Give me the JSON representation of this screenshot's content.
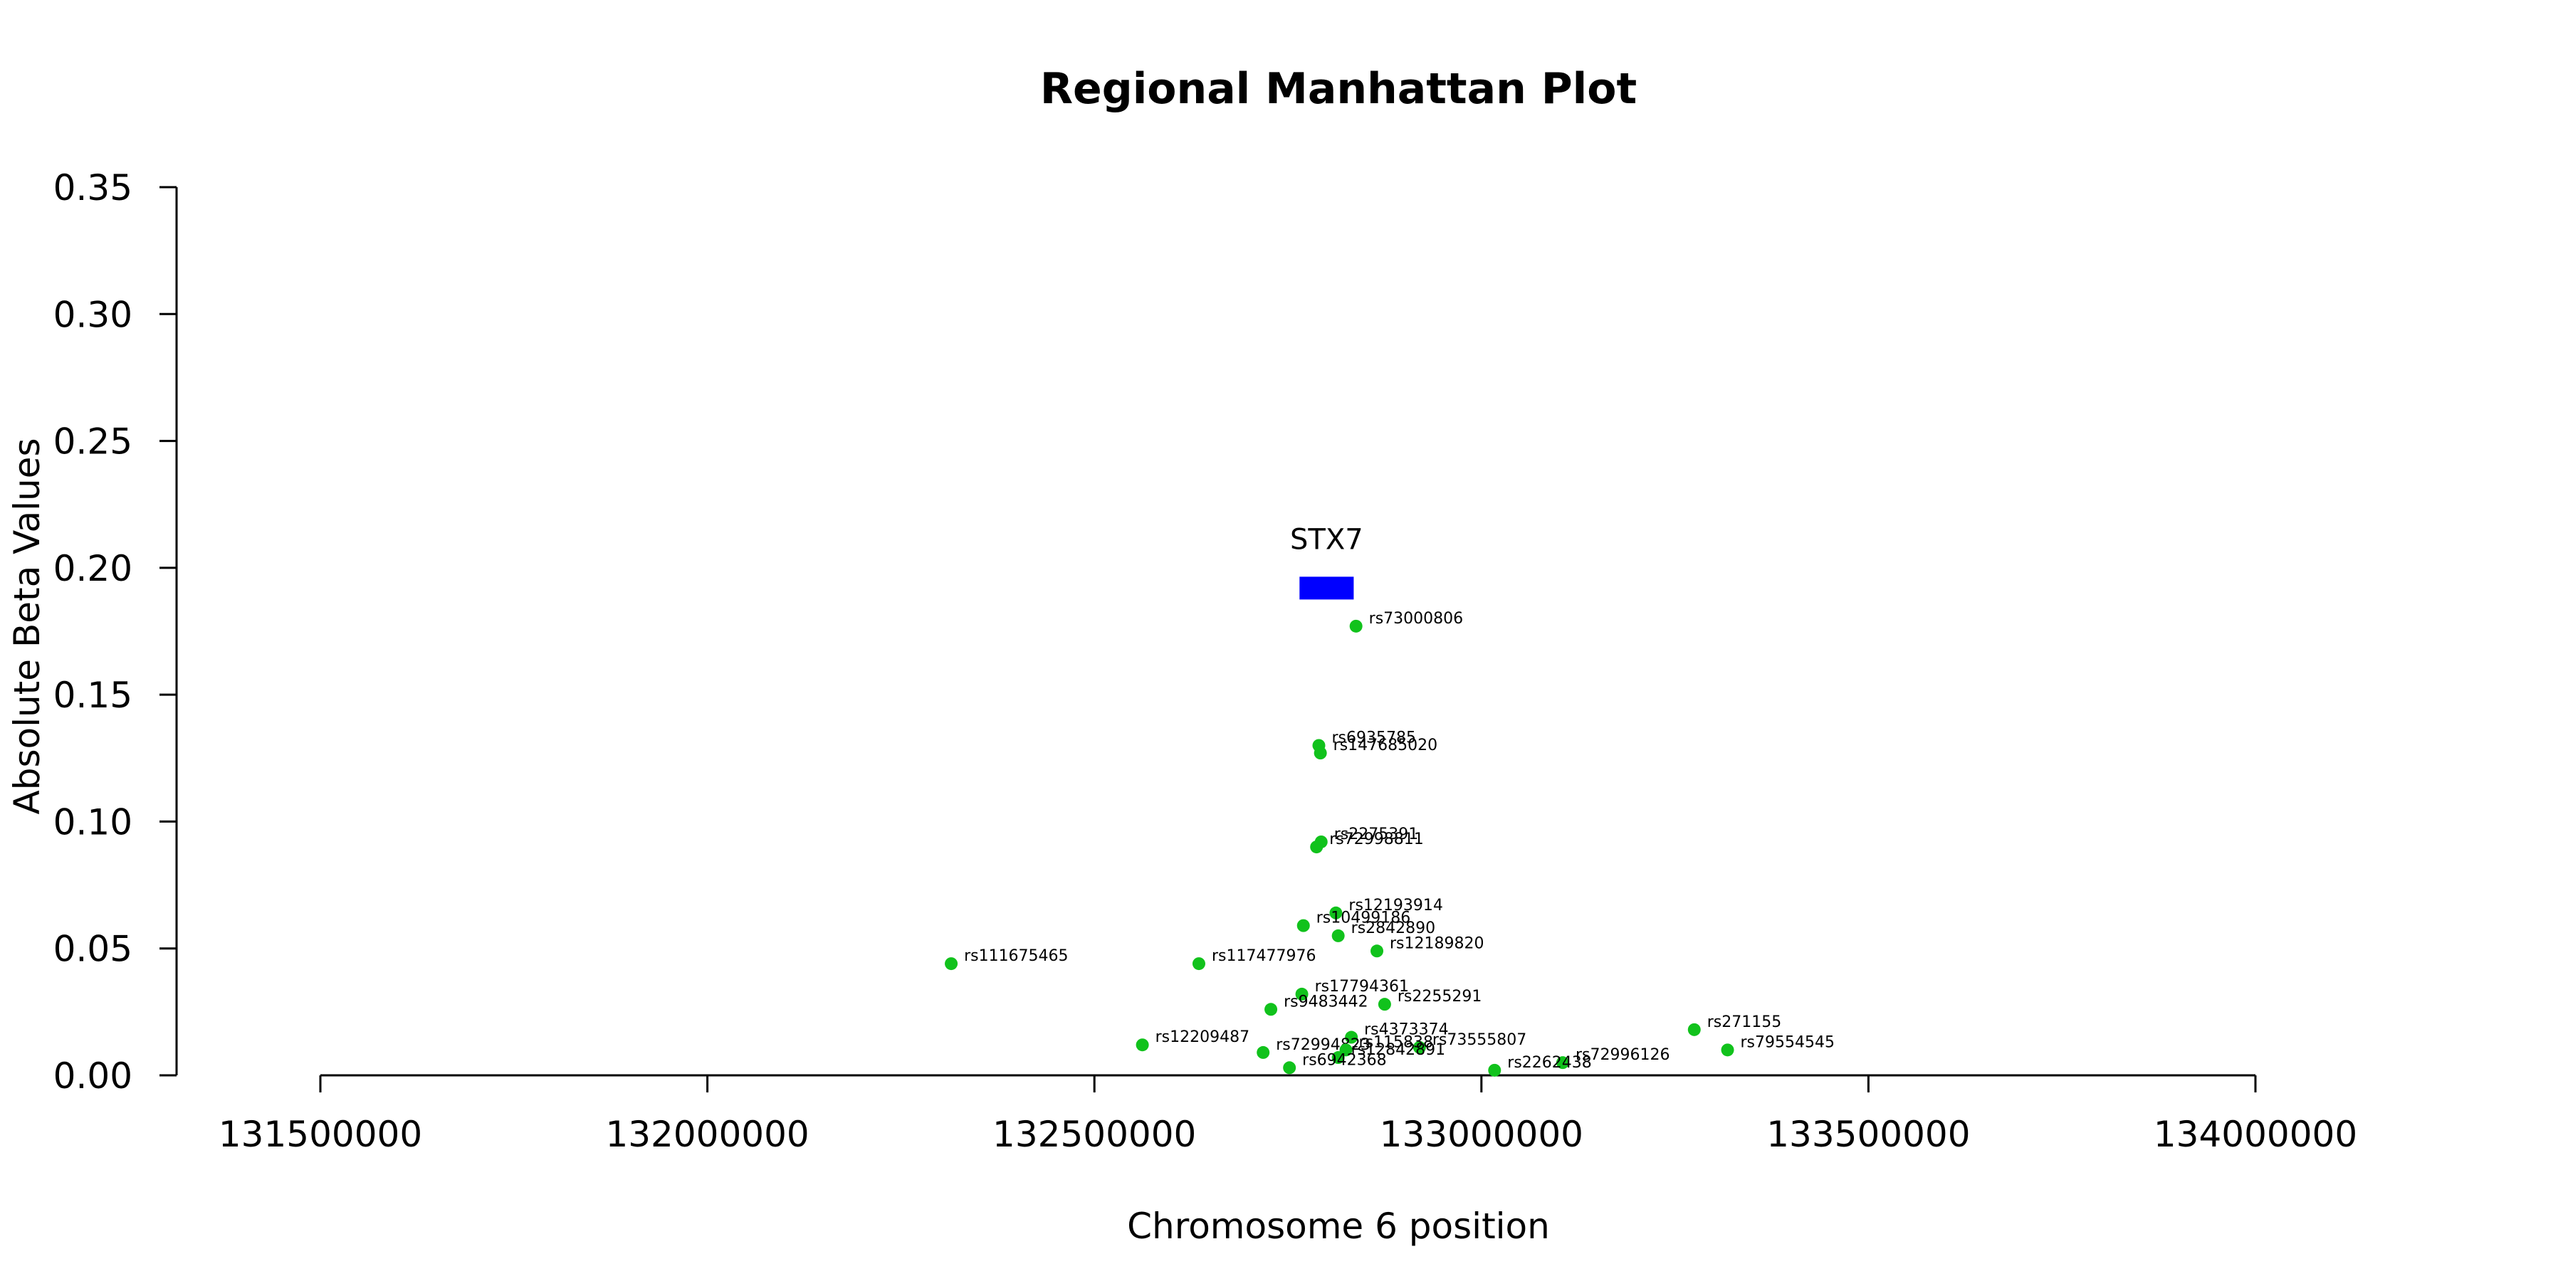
{
  "chart_data": {
    "type": "scatter",
    "title": "Regional Manhattan Plot",
    "xlabel": "Chromosome 6 position",
    "ylabel": "Absolute Beta Values",
    "xlim": [
      131500000,
      134000000
    ],
    "ylim": [
      0,
      0.35
    ],
    "x_ticks": [
      "131500000",
      "132000000",
      "132500000",
      "133000000",
      "133500000",
      "134000000"
    ],
    "y_ticks": [
      "0.00",
      "0.05",
      "0.10",
      "0.15",
      "0.20",
      "0.25",
      "0.30",
      "0.35"
    ],
    "grid": false,
    "point_color": "#11c21c",
    "gene": {
      "name": "STX7",
      "start": 132765000,
      "end": 132835000,
      "y": 0.192,
      "color": "#0000ff"
    },
    "points": [
      {
        "label": "rs73000806",
        "x": 132838000,
        "y": 0.177
      },
      {
        "label": "rs6935785",
        "x": 132790000,
        "y": 0.13
      },
      {
        "label": "rs147685020",
        "x": 132792000,
        "y": 0.127
      },
      {
        "label": "rs2275391",
        "x": 132793000,
        "y": 0.092
      },
      {
        "label": "rs72998811",
        "x": 132787000,
        "y": 0.09
      },
      {
        "label": "rs12193914",
        "x": 132812000,
        "y": 0.064
      },
      {
        "label": "rs10499186",
        "x": 132770000,
        "y": 0.059
      },
      {
        "label": "rs2842890",
        "x": 132815000,
        "y": 0.055
      },
      {
        "label": "rs12189820",
        "x": 132865000,
        "y": 0.049
      },
      {
        "label": "rs111675465",
        "x": 132315000,
        "y": 0.044
      },
      {
        "label": "rs117477976",
        "x": 132635000,
        "y": 0.044
      },
      {
        "label": "rs17794361",
        "x": 132768000,
        "y": 0.032
      },
      {
        "label": "rs9483442",
        "x": 132728000,
        "y": 0.026
      },
      {
        "label": "rs2255291",
        "x": 132875000,
        "y": 0.028
      },
      {
        "label": "rs271155",
        "x": 133275000,
        "y": 0.018
      },
      {
        "label": "rs4373374",
        "x": 132832000,
        "y": 0.015
      },
      {
        "label": "rs12209487",
        "x": 132562000,
        "y": 0.012
      },
      {
        "label": "rs73555807",
        "x": 132920000,
        "y": 0.011
      },
      {
        "label": "rs79554545",
        "x": 133318000,
        "y": 0.01
      },
      {
        "label": "rs72994823",
        "x": 132718000,
        "y": 0.009
      },
      {
        "label": "rs115838",
        "x": 132825000,
        "y": 0.01
      },
      {
        "label": "rs12842891",
        "x": 132815000,
        "y": 0.007
      },
      {
        "label": "rs6942368",
        "x": 132752000,
        "y": 0.003
      },
      {
        "label": "rs72996126",
        "x": 133105000,
        "y": 0.005
      },
      {
        "label": "rs2262438",
        "x": 133017000,
        "y": 0.002
      }
    ]
  }
}
